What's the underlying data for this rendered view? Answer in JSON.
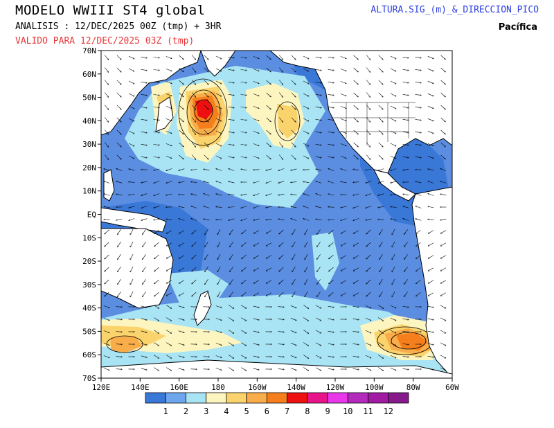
{
  "header": {
    "title": "MODELO WWIII ST4 global",
    "analysis": "ANALISIS : 12/DEC/2025 00Z  (tmp) + 3HR",
    "valid": "VALIDO PARA  12/DEC/2025 03Z  (tmp)",
    "variable": "ALTURA.SIG_(m)_&_DIRECCION_PICO",
    "region": "Pacífica"
  },
  "map": {
    "lat_ticks": [
      "70N",
      "60N",
      "50N",
      "40N",
      "30N",
      "20N",
      "10N",
      "EQ",
      "10S",
      "20S",
      "30S",
      "40S",
      "50S",
      "60S",
      "70S"
    ],
    "lon_ticks": [
      "120E",
      "140E",
      "160E",
      "180",
      "160W",
      "140W",
      "120W",
      "100W",
      "80W",
      "60W"
    ],
    "lat_range": [
      -70,
      70
    ],
    "lon_range": [
      120,
      300
    ],
    "ocean_background": "#5b8de0",
    "land_color": "#ffffff",
    "line_color": "#000000"
  },
  "colorbar": {
    "labels": [
      "1",
      "2",
      "3",
      "4",
      "5",
      "6",
      "7",
      "8",
      "9",
      "10",
      "11",
      "12"
    ],
    "colors": [
      "#3a78d8",
      "#6ea6ee",
      "#a8e4f4",
      "#fcf5c0",
      "#fbd36c",
      "#f9ad4a",
      "#f57f1c",
      "#ee1010",
      "#e8148a",
      "#e838ea",
      "#b42abc",
      "#a01aa4",
      "#861a8a"
    ]
  }
}
